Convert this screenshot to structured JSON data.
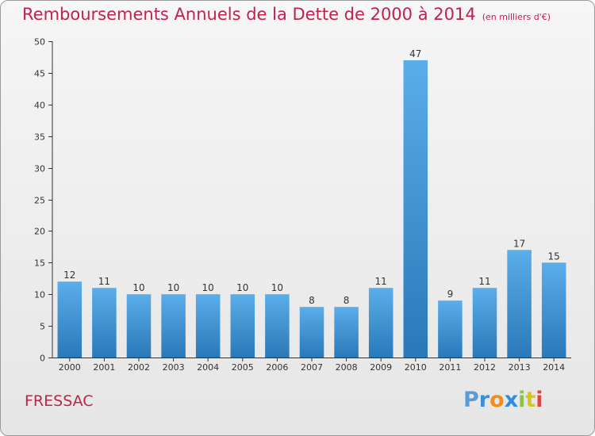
{
  "header": {
    "title": "Remboursements Annuels de la Dette de 2000 à 2014",
    "unit": "(en milliers d'€)"
  },
  "footer": {
    "commune": "FRESSAC",
    "logo": "Proxiti"
  },
  "chart_data": {
    "type": "bar",
    "title": "Remboursements Annuels de la Dette de 2000 à 2014",
    "subtitle": "(en milliers d'€)",
    "xlabel": "",
    "ylabel": "",
    "categories": [
      "2000",
      "2001",
      "2002",
      "2003",
      "2004",
      "2005",
      "2006",
      "2007",
      "2008",
      "2009",
      "2010",
      "2011",
      "2012",
      "2013",
      "2014"
    ],
    "values": [
      12,
      11,
      10,
      10,
      10,
      10,
      10,
      8,
      8,
      11,
      47,
      9,
      11,
      17,
      15
    ],
    "ylim": [
      0,
      50
    ],
    "yticks": [
      0,
      5,
      10,
      15,
      20,
      25,
      30,
      35,
      40,
      45,
      50
    ],
    "grid": false,
    "legend": "none",
    "colors": {
      "bar_light": "#5aaee9",
      "bar_dark": "#2a78b8",
      "text": "#c0224e",
      "axis": "#333333"
    }
  }
}
